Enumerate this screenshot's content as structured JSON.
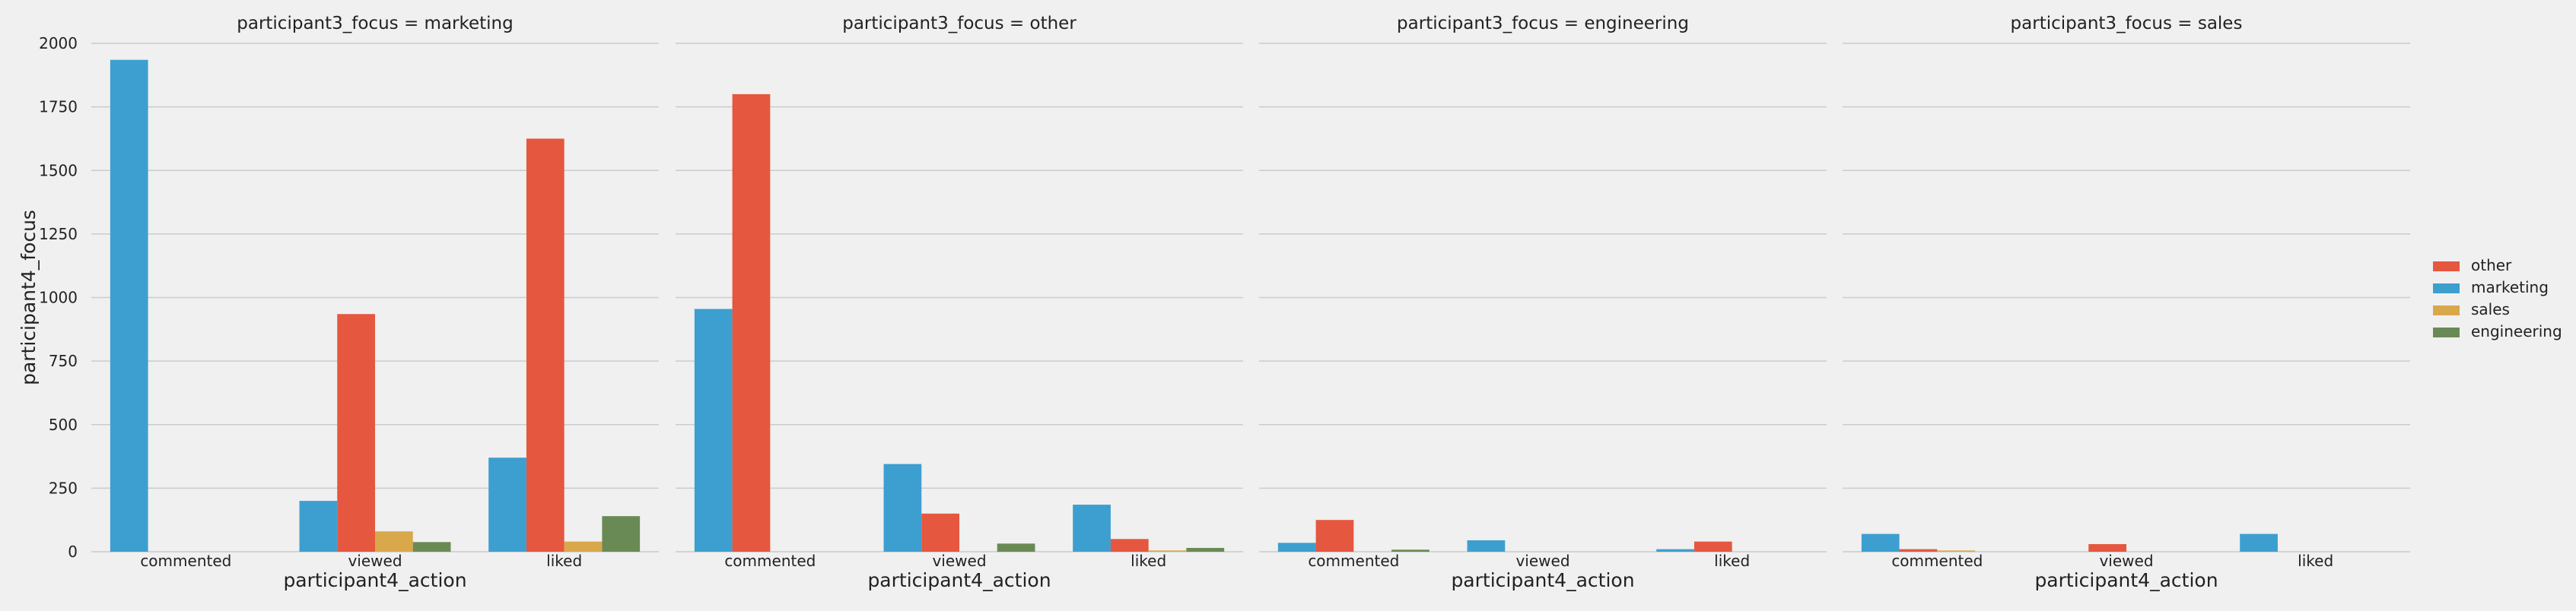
{
  "chart_data": {
    "type": "bar",
    "ylabel": "participant4_focus",
    "xlabel": "participant4_action",
    "ylim": [
      0,
      2000
    ],
    "yticks": [
      0,
      250,
      500,
      750,
      1000,
      1250,
      1500,
      1750,
      2000
    ],
    "categories": [
      "commented",
      "viewed",
      "liked"
    ],
    "grid": true,
    "legend_position": "right",
    "hue_order": [
      "marketing",
      "other",
      "sales",
      "engineering"
    ],
    "legend": [
      {
        "name": "other",
        "color": "#e5573f"
      },
      {
        "name": "marketing",
        "color": "#3d9fcf"
      },
      {
        "name": "sales",
        "color": "#d9a84b"
      },
      {
        "name": "engineering",
        "color": "#6a8a55"
      }
    ],
    "panels": [
      {
        "title": "participant3_focus = marketing",
        "series": [
          {
            "name": "marketing",
            "values": [
              1935,
              200,
              370
            ]
          },
          {
            "name": "other",
            "values": [
              0,
              935,
              1625
            ]
          },
          {
            "name": "sales",
            "values": [
              0,
              80,
              40
            ]
          },
          {
            "name": "engineering",
            "values": [
              0,
              38,
              140
            ]
          }
        ]
      },
      {
        "title": "participant3_focus = other",
        "series": [
          {
            "name": "marketing",
            "values": [
              955,
              345,
              185
            ]
          },
          {
            "name": "other",
            "values": [
              1800,
              150,
              50
            ]
          },
          {
            "name": "sales",
            "values": [
              0,
              0,
              5
            ]
          },
          {
            "name": "engineering",
            "values": [
              0,
              32,
              15
            ]
          }
        ]
      },
      {
        "title": "participant3_focus = engineering",
        "series": [
          {
            "name": "marketing",
            "values": [
              35,
              45,
              10
            ]
          },
          {
            "name": "other",
            "values": [
              125,
              0,
              40
            ]
          },
          {
            "name": "sales",
            "values": [
              0,
              0,
              0
            ]
          },
          {
            "name": "engineering",
            "values": [
              8,
              0,
              0
            ]
          }
        ]
      },
      {
        "title": "participant3_focus = sales",
        "series": [
          {
            "name": "marketing",
            "values": [
              70,
              0,
              70
            ]
          },
          {
            "name": "other",
            "values": [
              10,
              30,
              0
            ]
          },
          {
            "name": "sales",
            "values": [
              5,
              0,
              0
            ]
          },
          {
            "name": "engineering",
            "values": [
              0,
              0,
              0
            ]
          }
        ]
      }
    ]
  }
}
